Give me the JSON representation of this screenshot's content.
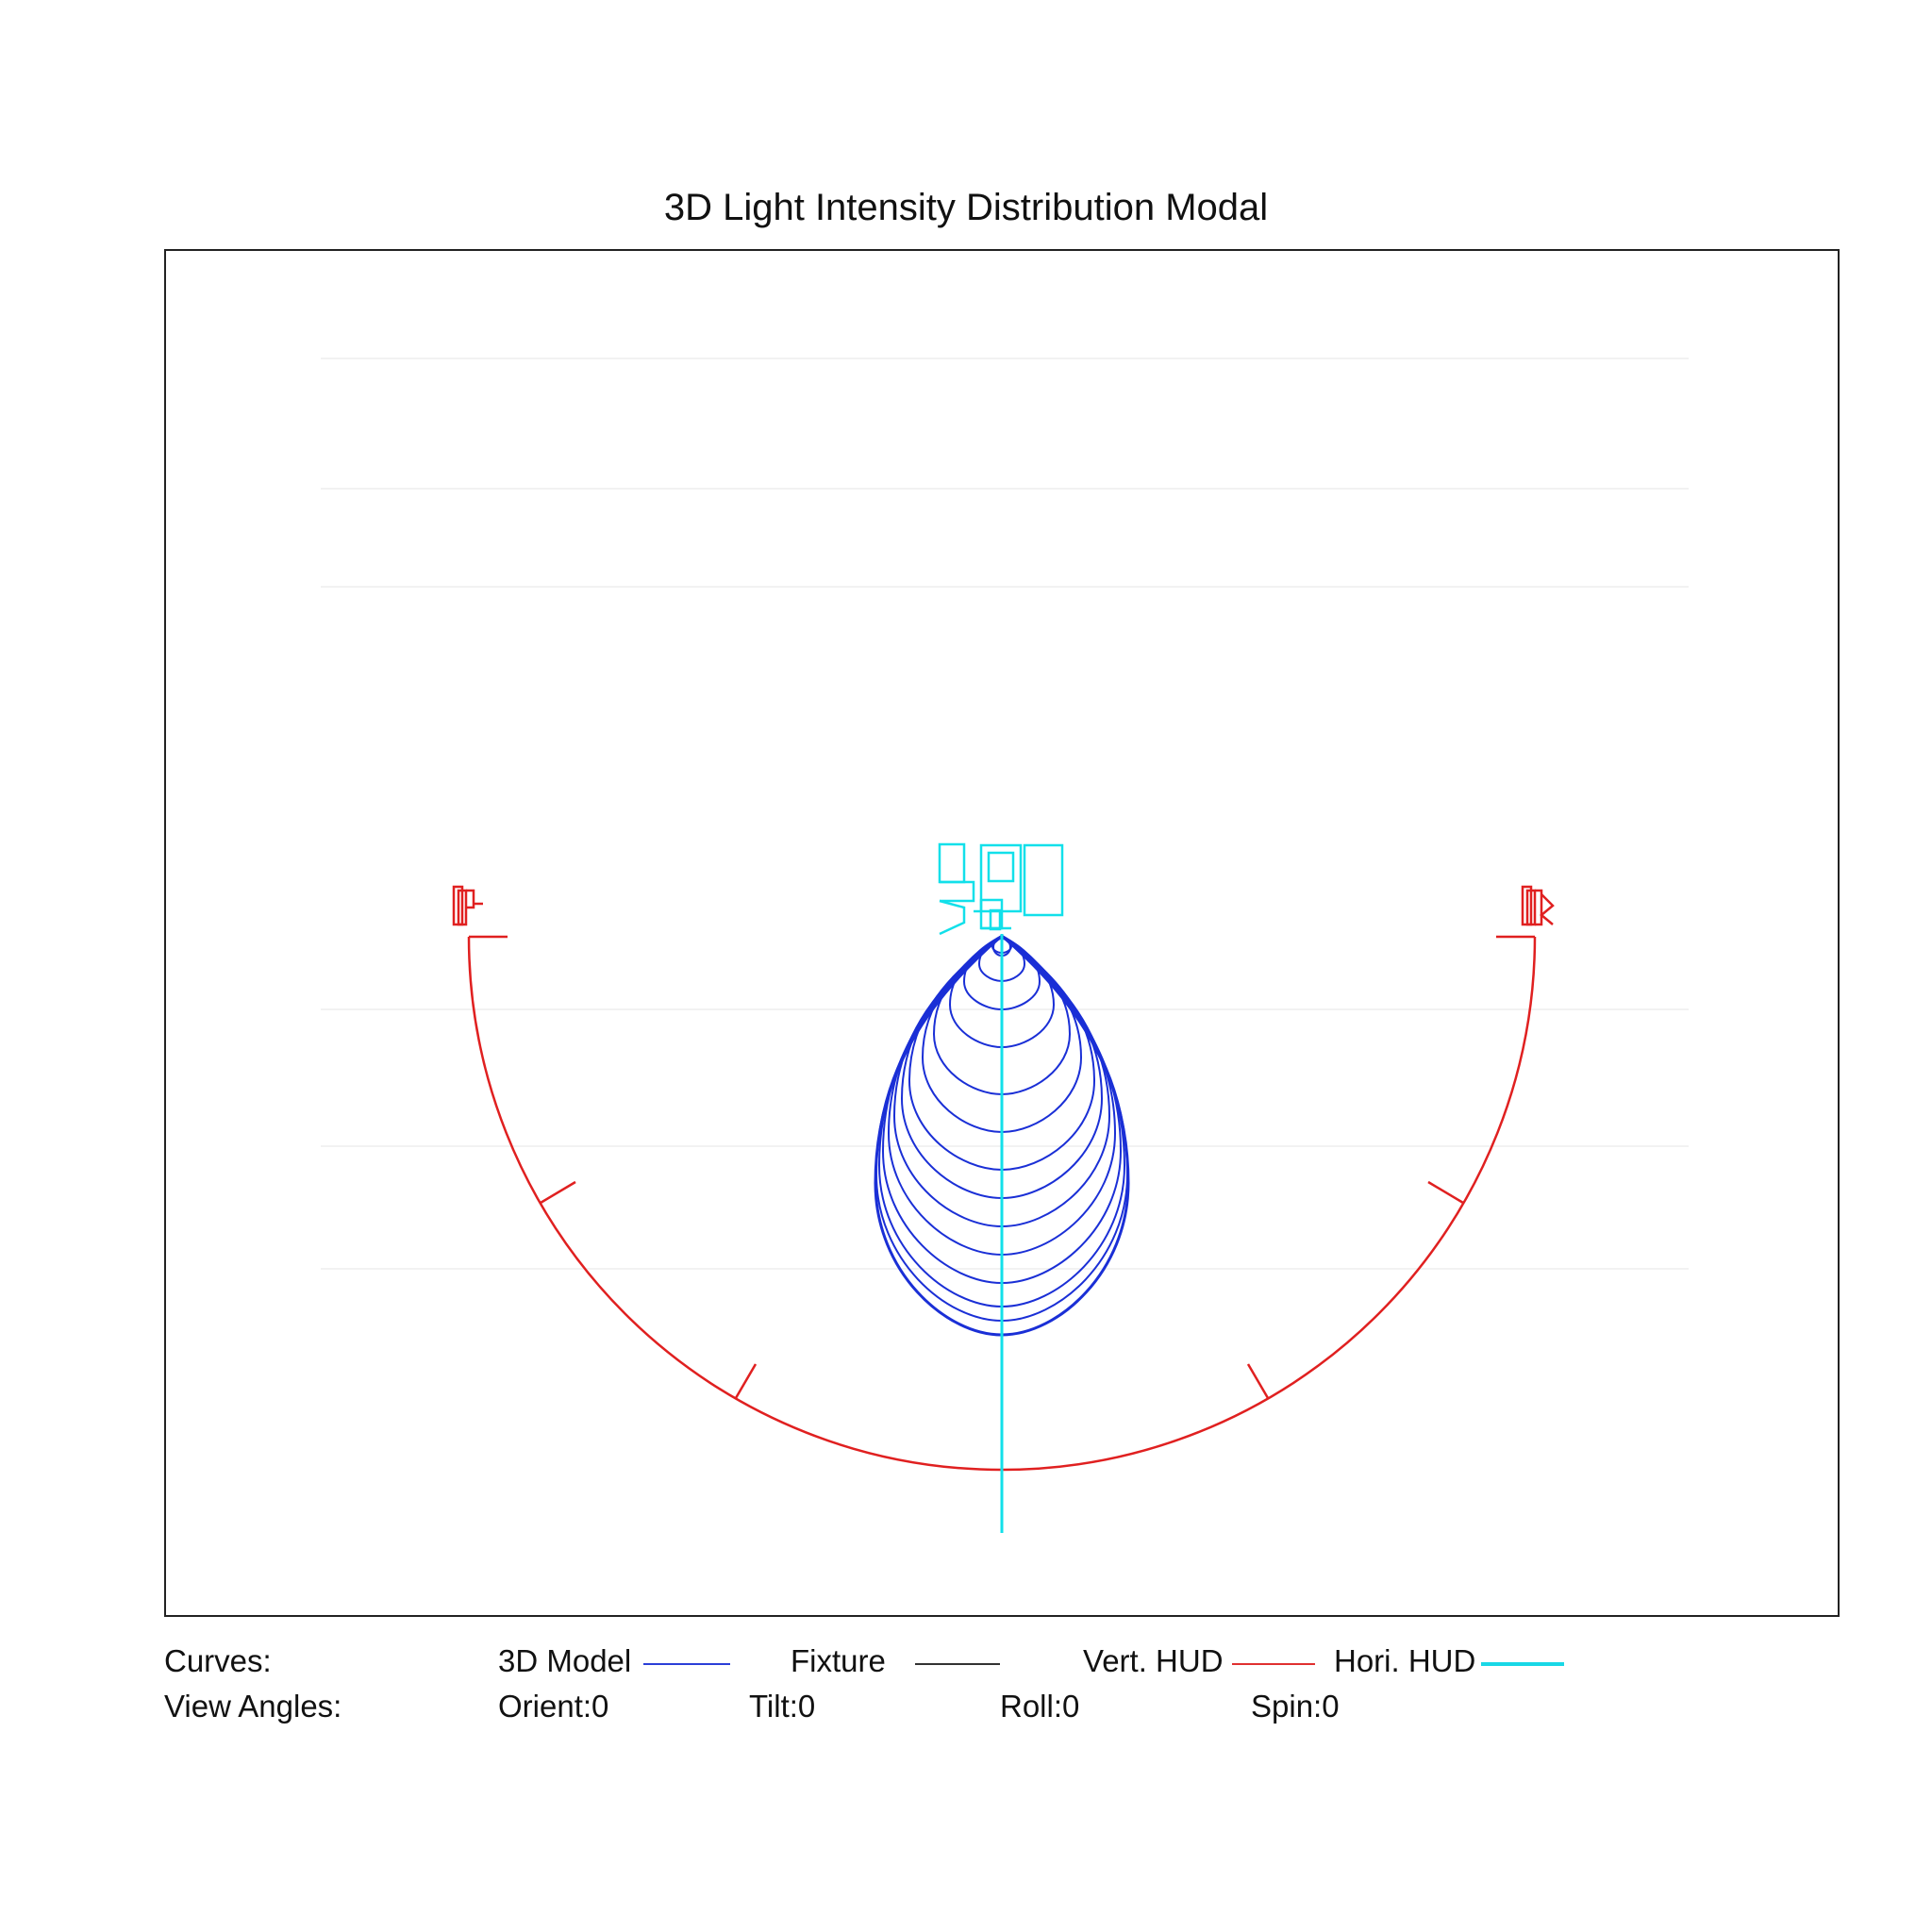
{
  "title": "3D Light Intensity Distribution Modal",
  "legend": {
    "curves_label": "Curves:",
    "items": [
      {
        "label": "3D Model",
        "color": "#2b3fd8"
      },
      {
        "label": "Fixture",
        "color": "#333333"
      },
      {
        "label": "Vert. HUD",
        "color": "#e03030"
      },
      {
        "label": "Hori. HUD",
        "color": "#19d8e6"
      }
    ]
  },
  "view_angles": {
    "label": "View Angles:",
    "orient": "Orient:0",
    "tilt": "Tilt:0",
    "roll": "Roll:0",
    "spin": "Spin:0"
  },
  "colors": {
    "model": "#1a2fd6",
    "vertical_hud": "#e02020",
    "horizontal_hud": "#12e0ea",
    "frame": "#222222"
  }
}
